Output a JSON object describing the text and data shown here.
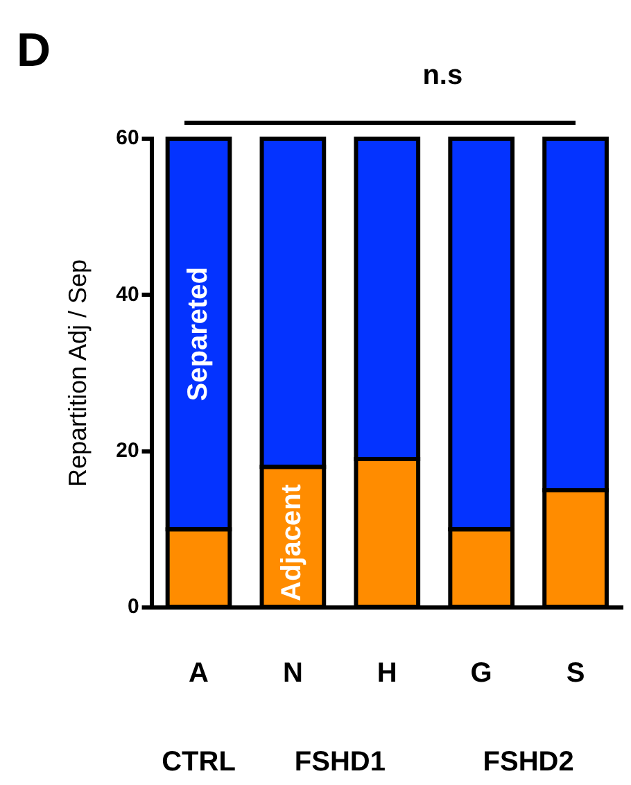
{
  "chart_data": {
    "type": "bar",
    "stacked": true,
    "ylabel": "Repartition Adj / Sep",
    "categories": [
      "A",
      "N",
      "H",
      "G",
      "S"
    ],
    "series": [
      {
        "name": "Adjacent",
        "color": "#ff8c00",
        "values": [
          10,
          18,
          19,
          10,
          15
        ]
      },
      {
        "name": "Separeted",
        "color": "#0433ff",
        "values": [
          50,
          42,
          41,
          50,
          45
        ]
      }
    ],
    "ylim": [
      0,
      60
    ],
    "yticks": [
      0,
      20,
      40,
      60
    ],
    "grid": false,
    "legend": false,
    "annotations": [
      "D",
      "n.s",
      "CTRL",
      "FSHD1",
      "FSHD2"
    ]
  }
}
